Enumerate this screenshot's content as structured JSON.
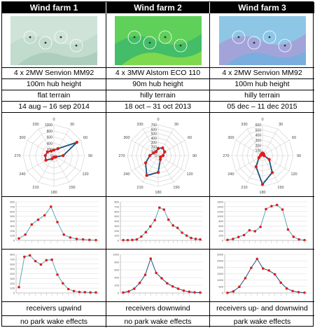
{
  "farms": [
    {
      "name": "Wind farm 1",
      "turbines": "4 x 2MW Senvion MM92",
      "hub_height": "100m hub height",
      "terrain": "flat terrain",
      "period": "14 aug – 16 sep 2014",
      "receivers": "receivers upwind",
      "wake": "no park wake effects",
      "map_colors": [
        "#cfe3d8",
        "#bdd8ca",
        "#a9cbb9"
      ]
    },
    {
      "name": "Wind farm 2",
      "turbines": "4 x 3MW Alstom ECO 110",
      "hub_height": "90m hub height",
      "terrain": "hilly terrain",
      "period": "18 oct – 31 oct 2013",
      "receivers": "receivers downwind",
      "wake": "no park wake effects",
      "map_colors": [
        "#5fd05a",
        "#3cb86a",
        "#8fe04a"
      ]
    },
    {
      "name": "Wind farm 3",
      "turbines": "4 x 2MW Senvion MM92",
      "hub_height": "100m hub height",
      "terrain": "hilly terrain",
      "period": "05 dec – 11 dec 2015",
      "receivers": "receivers up- and downwind",
      "wake": "park wake effects",
      "map_colors": [
        "#8ec7e6",
        "#a79bd6",
        "#6fb0de"
      ]
    }
  ],
  "chart_data": [
    {
      "type": "radar",
      "angle_labels": [
        "0",
        "30",
        "60",
        "90",
        "120",
        "150",
        "180",
        "210",
        "240",
        "270",
        "300",
        "330"
      ],
      "radial_ticks": [
        "0",
        "200",
        "400",
        "600",
        "800",
        "1000"
      ],
      "rmax": 1000,
      "values": [
        180,
        260,
        860,
        300,
        80,
        60,
        50,
        120,
        300,
        280,
        240,
        170
      ],
      "color": "#1f4e79"
    },
    {
      "type": "radar",
      "angle_labels": [
        "0",
        "30",
        "60",
        "90",
        "120",
        "150",
        "180",
        "210",
        "240",
        "270",
        "300",
        "330"
      ],
      "radial_ticks": [
        "0",
        "100",
        "200",
        "300",
        "400",
        "500",
        "600",
        "700"
      ],
      "rmax": 700,
      "values": [
        160,
        200,
        170,
        110,
        60,
        100,
        380,
        520,
        330,
        190,
        120,
        100
      ],
      "color": "#1f4e79"
    },
    {
      "type": "radar",
      "angle_labels": [
        "0",
        "30",
        "60",
        "90",
        "120",
        "150",
        "180",
        "210",
        "240",
        "270",
        "300",
        "330"
      ],
      "radial_ticks": [
        "0",
        "100",
        "200",
        "300",
        "400",
        "500",
        "600"
      ],
      "rmax": 600,
      "values": [
        50,
        40,
        30,
        30,
        150,
        380,
        560,
        250,
        80,
        40,
        30,
        40
      ],
      "color": "#1f4e79"
    },
    {
      "type": "line",
      "ymax": 800,
      "y_ticks": [
        "0",
        "100",
        "200",
        "300",
        "400",
        "500",
        "600",
        "700",
        "800"
      ],
      "values": [
        40,
        120,
        330,
        430,
        520,
        700,
        380,
        120,
        60,
        30,
        20,
        10,
        5
      ],
      "color": "#5aa7b5"
    },
    {
      "type": "line",
      "ymax": 800,
      "y_ticks": [
        "0",
        "100",
        "200",
        "300",
        "400",
        "500",
        "600",
        "700",
        "800"
      ],
      "values": [
        5,
        5,
        10,
        20,
        80,
        170,
        290,
        420,
        680,
        640,
        430,
        310,
        260,
        160,
        100,
        50,
        30,
        20
      ],
      "color": "#5aa7b5"
    },
    {
      "type": "line",
      "ymax": 1600,
      "y_ticks": [
        "0",
        "200",
        "400",
        "600",
        "800",
        "1000",
        "1200",
        "1400",
        "1600"
      ],
      "values": [
        20,
        60,
        140,
        220,
        420,
        380,
        560,
        1300,
        1420,
        1470,
        1280,
        450,
        150,
        40,
        10
      ],
      "color": "#5aa7b5"
    },
    {
      "type": "line",
      "ymax": 800,
      "y_ticks": [
        "0",
        "100",
        "200",
        "300",
        "400",
        "500",
        "600",
        "700",
        "800"
      ],
      "values": [
        120,
        750,
        780,
        660,
        590,
        680,
        690,
        380,
        200,
        80,
        40,
        20,
        15,
        10,
        10
      ],
      "color": "#5aa7b5"
    },
    {
      "type": "line",
      "ymax": 1000,
      "y_ticks": [
        "0",
        "200",
        "400",
        "600",
        "800",
        "1000"
      ],
      "values": [
        10,
        40,
        110,
        260,
        470,
        890,
        520,
        380,
        250,
        170,
        110,
        60,
        30,
        15,
        10
      ],
      "color": "#1f4e79"
    },
    {
      "type": "line",
      "ymax": 3000,
      "y_ticks": [
        "0",
        "500",
        "1000",
        "1500",
        "2000",
        "2500",
        "3000"
      ],
      "values": [
        10,
        120,
        480,
        1150,
        1950,
        2650,
        1900,
        1750,
        1450,
        800,
        350,
        150,
        60,
        20
      ],
      "color": "#1f4e79"
    }
  ]
}
